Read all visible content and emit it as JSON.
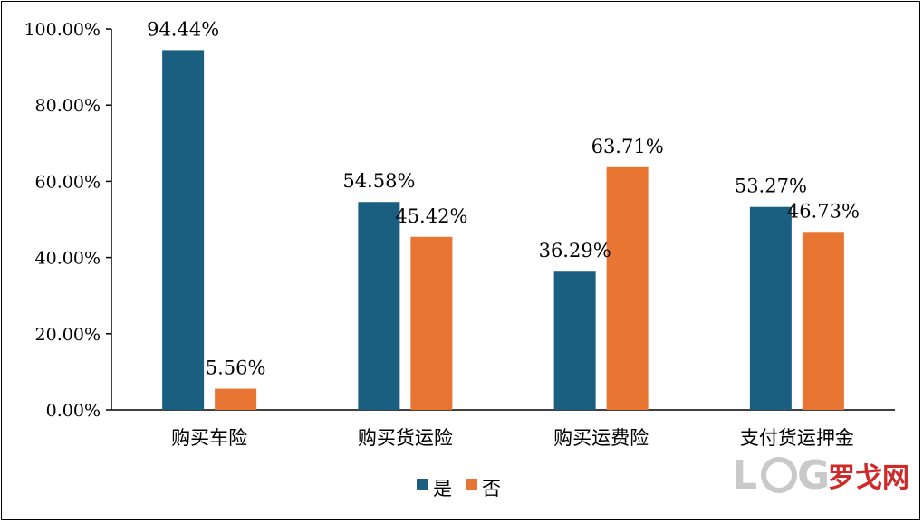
{
  "chart_data": {
    "type": "bar",
    "categories": [
      "购买车险",
      "购买货运险",
      "购买运费险",
      "支付货运押金"
    ],
    "series": [
      {
        "name": "是",
        "values": [
          94.44,
          54.58,
          36.29,
          53.27
        ],
        "labels": [
          "94.44%",
          "54.58%",
          "36.29%",
          "53.27%"
        ],
        "color": "#1b5f80"
      },
      {
        "name": "否",
        "values": [
          5.56,
          45.42,
          63.71,
          46.73
        ],
        "labels": [
          "5.56%",
          "45.42%",
          "63.71%",
          "46.73%"
        ],
        "color": "#e97532"
      }
    ],
    "ylim": [
      0,
      100
    ],
    "yticks": [
      "0.00%",
      "20.00%",
      "40.00%",
      "60.00%",
      "80.00%",
      "100.00%"
    ],
    "grid": false,
    "legend_position": "bottom-center"
  },
  "watermark": {
    "text": "LOG罗戈网",
    "colors": {
      "log": "#c9c9c9",
      "brand": "#cf2a2a"
    }
  }
}
